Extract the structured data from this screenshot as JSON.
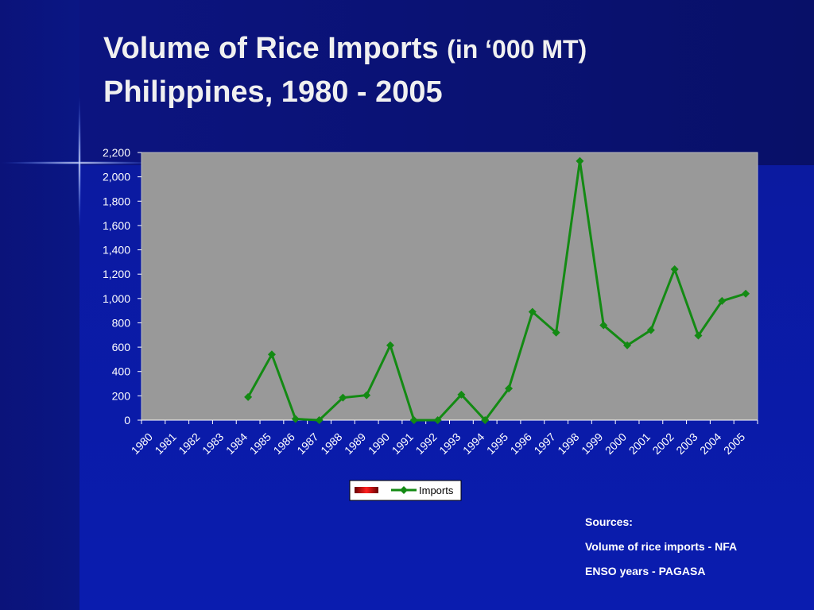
{
  "chart_data": {
    "type": "line",
    "title": "Volume of Rice Imports",
    "title_unit": "(in ‘000 MT)",
    "subtitle": "Philippines, 1980 - 2005",
    "categories": [
      "1980",
      "1981",
      "1982",
      "1983",
      "1984",
      "1985",
      "1986",
      "1987",
      "1988",
      "1989",
      "1990",
      "1991",
      "1992",
      "1993",
      "1994",
      "1995",
      "1996",
      "1997",
      "1998",
      "1999",
      "2000",
      "2001",
      "2002",
      "2003",
      "2004",
      "2005"
    ],
    "series": [
      {
        "name": "Imports",
        "color": "#138a13",
        "values": [
          null,
          null,
          null,
          null,
          190,
          540,
          10,
          0,
          185,
          205,
          615,
          0,
          0,
          210,
          0,
          260,
          890,
          720,
          2130,
          780,
          615,
          740,
          1240,
          695,
          980,
          1040
        ]
      }
    ],
    "ylim": [
      0,
      2200
    ],
    "yticks": [
      0,
      200,
      400,
      600,
      800,
      {
        "value": 1000,
        "label": "1,000"
      },
      {
        "value": 1200,
        "label": "1,200"
      },
      {
        "value": 1400,
        "label": "1,400"
      },
      {
        "value": 1600,
        "label": "1,600"
      },
      {
        "value": 1800,
        "label": "1,800"
      },
      {
        "value": 2000,
        "label": "2,000"
      },
      {
        "value": 2200,
        "label": "2,200"
      }
    ],
    "plot_background": "#999999",
    "notes": [
      "Sources:",
      "Volume of rice imports - NFA",
      "ENSO years - PAGASA"
    ]
  }
}
